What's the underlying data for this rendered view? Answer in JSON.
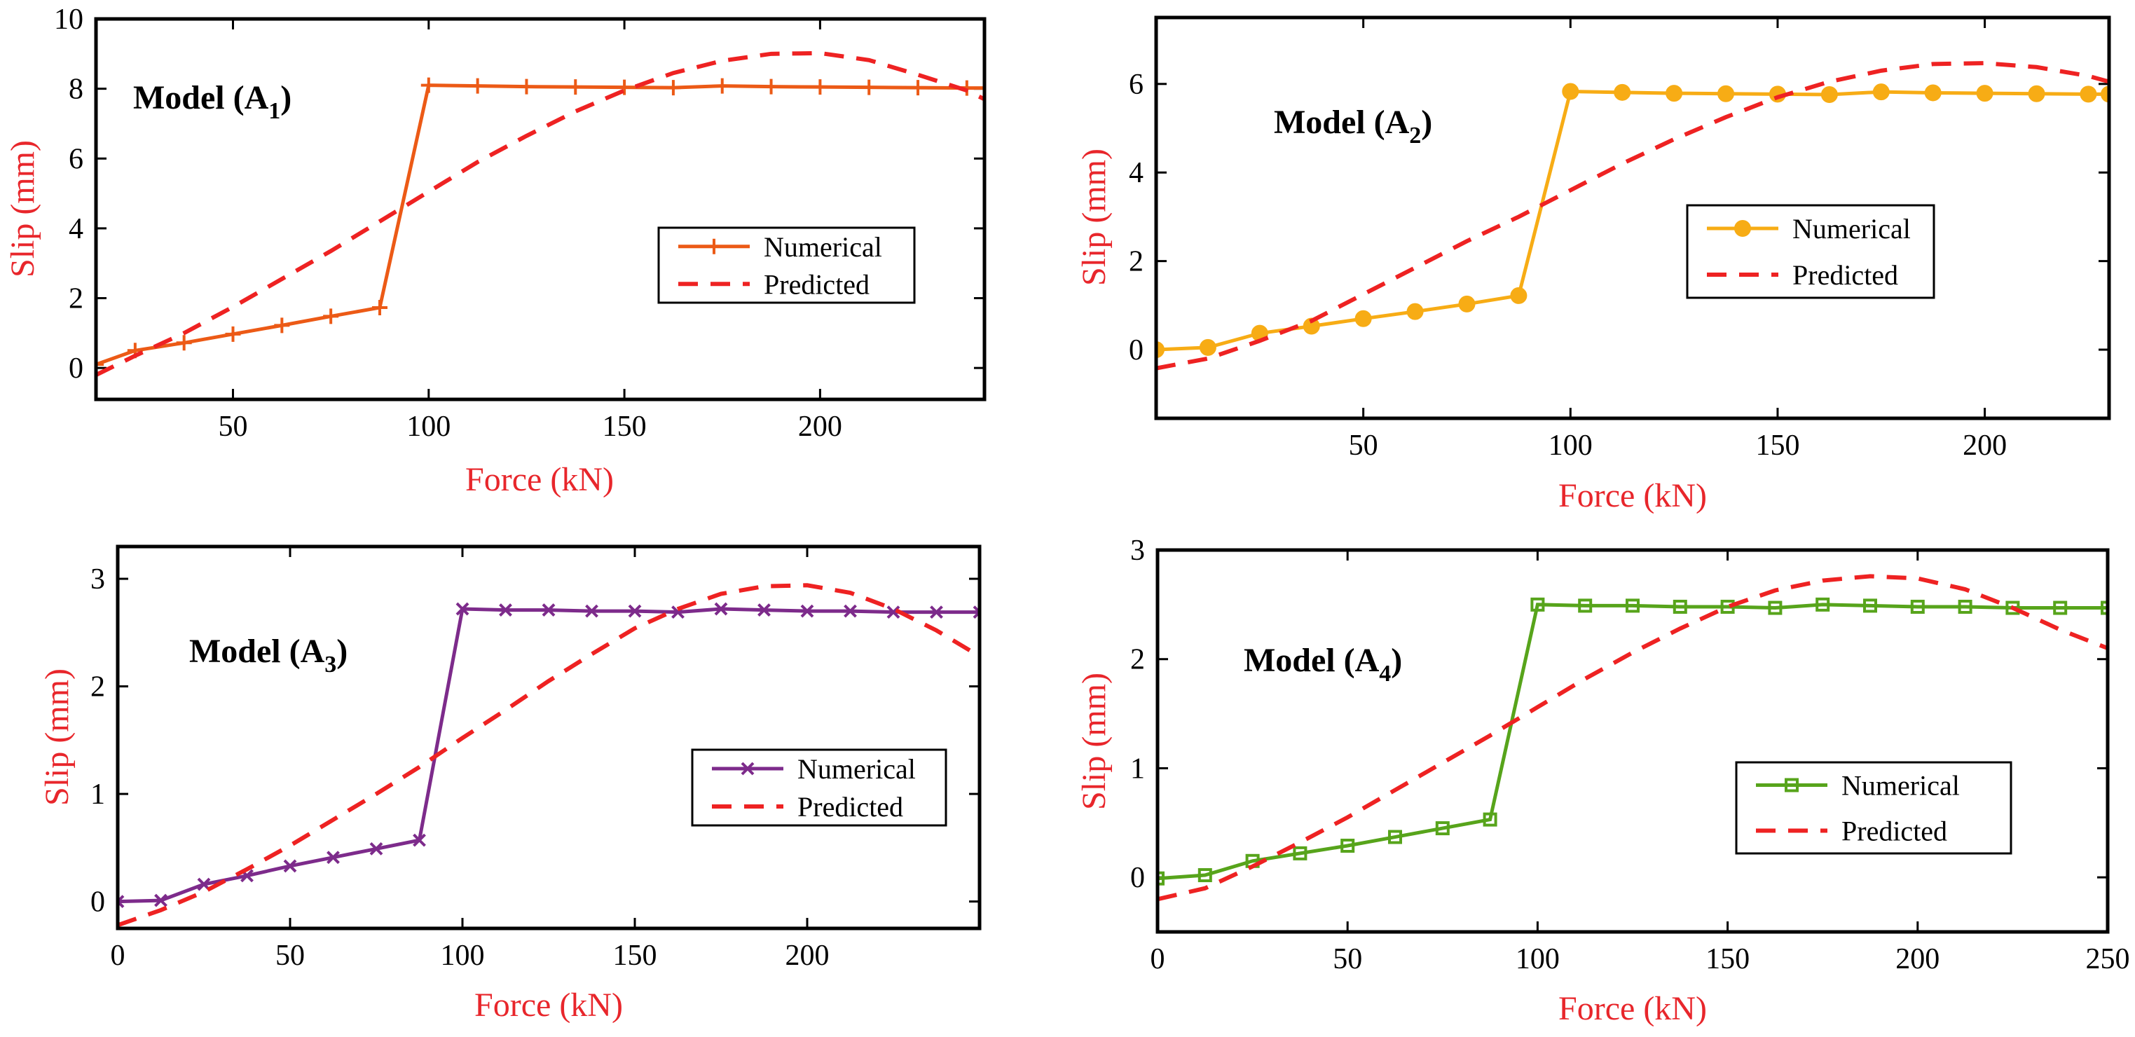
{
  "colors": {
    "predicted": "#ee2222",
    "axis_label": "#e8262b",
    "axis": "#000000"
  },
  "chart_data": [
    {
      "type": "line",
      "panel": "A1",
      "model_label": "Model (A",
      "model_sub": "1",
      "model_close": ")",
      "xlabel": "Force (kN)",
      "ylabel": "Slip (mm)",
      "xlim": [
        15,
        242
      ],
      "ylim": [
        -0.9,
        10
      ],
      "xticks": [
        50,
        100,
        150,
        200
      ],
      "yticks": [
        0,
        2,
        4,
        6,
        8,
        10
      ],
      "legend": {
        "position": "center-right",
        "entries": [
          "Numerical",
          "Predicted"
        ]
      },
      "series": [
        {
          "name": "Numerical",
          "marker": "plus",
          "color": "#ec5a16",
          "x": [
            15,
            25,
            37.5,
            50,
            62.5,
            75,
            87.5,
            100,
            112.5,
            125,
            137.5,
            150,
            162.5,
            175,
            187.5,
            200,
            212.5,
            225,
            237.5,
            242
          ],
          "y": [
            0.1,
            0.5,
            0.72,
            0.97,
            1.22,
            1.48,
            1.73,
            8.1,
            8.08,
            8.06,
            8.05,
            8.04,
            8.03,
            8.08,
            8.06,
            8.05,
            8.04,
            8.03,
            8.02,
            8.02
          ]
        },
        {
          "name": "Predicted",
          "style": "dashed",
          "x": [
            15,
            25,
            37.5,
            50,
            62.5,
            75,
            87.5,
            100,
            112.5,
            125,
            137.5,
            150,
            162.5,
            175,
            187.5,
            200,
            212.5,
            225,
            237.5,
            242
          ],
          "y": [
            -0.2,
            0.35,
            1.0,
            1.75,
            2.55,
            3.35,
            4.2,
            5.05,
            5.9,
            6.65,
            7.35,
            7.95,
            8.45,
            8.8,
            9.0,
            9.02,
            8.82,
            8.4,
            7.95,
            7.7
          ]
        }
      ]
    },
    {
      "type": "line",
      "panel": "A2",
      "model_label": "Model (A",
      "model_sub": "2",
      "model_close": ")",
      "xlabel": "Force (kN)",
      "ylabel": "Slip (mm)",
      "xlim": [
        0,
        230
      ],
      "ylim": [
        -1.55,
        7.5
      ],
      "xticks": [
        50,
        100,
        150,
        200
      ],
      "yticks": [
        0,
        2,
        4,
        6
      ],
      "legend": {
        "position": "center-right",
        "entries": [
          "Numerical",
          "Predicted"
        ]
      },
      "series": [
        {
          "name": "Numerical",
          "marker": "circle",
          "color": "#f7ac15",
          "x": [
            0,
            12.5,
            25,
            37.5,
            50,
            62.5,
            75,
            87.5,
            100,
            112.5,
            125,
            137.5,
            150,
            162.5,
            175,
            187.5,
            200,
            212.5,
            225,
            230
          ],
          "y": [
            0.0,
            0.05,
            0.37,
            0.53,
            0.7,
            0.86,
            1.03,
            1.22,
            5.83,
            5.81,
            5.79,
            5.78,
            5.77,
            5.76,
            5.82,
            5.8,
            5.79,
            5.78,
            5.77,
            5.77
          ]
        },
        {
          "name": "Predicted",
          "style": "dashed",
          "x": [
            0,
            12.5,
            25,
            37.5,
            50,
            62.5,
            75,
            87.5,
            100,
            112.5,
            125,
            137.5,
            150,
            162.5,
            175,
            187.5,
            200,
            212.5,
            225,
            230
          ],
          "y": [
            -0.42,
            -0.2,
            0.2,
            0.65,
            1.25,
            1.85,
            2.45,
            3.0,
            3.6,
            4.2,
            4.75,
            5.25,
            5.7,
            6.05,
            6.3,
            6.45,
            6.47,
            6.38,
            6.18,
            6.05
          ]
        }
      ]
    },
    {
      "type": "line",
      "panel": "A3",
      "model_label": "Model (A",
      "model_sub": "3",
      "model_close": ")",
      "xlabel": "Force (kN)",
      "ylabel": "Slip (mm)",
      "xlim": [
        0,
        250
      ],
      "ylim": [
        -0.25,
        3.3
      ],
      "xticks": [
        0,
        50,
        100,
        150,
        200
      ],
      "yticks": [
        0,
        1,
        2,
        3
      ],
      "legend": {
        "position": "center-right",
        "entries": [
          "Numerical",
          "Predicted"
        ]
      },
      "series": [
        {
          "name": "Numerical",
          "marker": "x",
          "color": "#7d2b8b",
          "x": [
            0,
            12.5,
            25,
            37.5,
            50,
            62.5,
            75,
            87.5,
            100,
            112.5,
            125,
            137.5,
            150,
            162.5,
            175,
            187.5,
            200,
            212.5,
            225,
            237.5,
            250
          ],
          "y": [
            0.0,
            0.01,
            0.16,
            0.24,
            0.33,
            0.41,
            0.49,
            0.57,
            2.72,
            2.71,
            2.71,
            2.7,
            2.7,
            2.69,
            2.72,
            2.71,
            2.7,
            2.7,
            2.69,
            2.69,
            2.69
          ]
        },
        {
          "name": "Predicted",
          "style": "dashed",
          "x": [
            0,
            12.5,
            25,
            37.5,
            50,
            62.5,
            75,
            87.5,
            100,
            112.5,
            125,
            137.5,
            150,
            162.5,
            175,
            187.5,
            200,
            212.5,
            225,
            237.5,
            250
          ],
          "y": [
            -0.22,
            -0.08,
            0.09,
            0.3,
            0.52,
            0.76,
            1.0,
            1.25,
            1.52,
            1.78,
            2.05,
            2.3,
            2.54,
            2.72,
            2.86,
            2.93,
            2.94,
            2.87,
            2.72,
            2.52,
            2.28
          ]
        }
      ]
    },
    {
      "type": "line",
      "panel": "A4",
      "model_label": "Model (A",
      "model_sub": "4",
      "model_close": ")",
      "xlabel": "Force (kN)",
      "ylabel": "Slip (mm)",
      "xlim": [
        0,
        250
      ],
      "ylim": [
        -0.5,
        3.0
      ],
      "xticks": [
        0,
        50,
        100,
        150,
        200,
        250
      ],
      "yticks": [
        0,
        1,
        2,
        3
      ],
      "legend": {
        "position": "center-right",
        "entries": [
          "Numerical",
          "Predicted"
        ]
      },
      "series": [
        {
          "name": "Numerical",
          "marker": "square",
          "color": "#57a41b",
          "x": [
            0,
            12.5,
            25,
            37.5,
            50,
            62.5,
            75,
            87.5,
            100,
            112.5,
            125,
            137.5,
            150,
            162.5,
            175,
            187.5,
            200,
            212.5,
            225,
            237.5,
            250
          ],
          "y": [
            -0.01,
            0.02,
            0.15,
            0.22,
            0.29,
            0.37,
            0.45,
            0.53,
            2.5,
            2.49,
            2.49,
            2.48,
            2.48,
            2.47,
            2.5,
            2.49,
            2.48,
            2.48,
            2.47,
            2.47,
            2.47
          ]
        },
        {
          "name": "Predicted",
          "style": "dashed",
          "x": [
            0,
            12.5,
            25,
            37.5,
            50,
            62.5,
            75,
            87.5,
            100,
            112.5,
            125,
            137.5,
            150,
            162.5,
            175,
            187.5,
            200,
            212.5,
            225,
            237.5,
            250
          ],
          "y": [
            -0.2,
            -0.1,
            0.1,
            0.32,
            0.55,
            0.8,
            1.05,
            1.3,
            1.56,
            1.82,
            2.06,
            2.28,
            2.48,
            2.63,
            2.72,
            2.76,
            2.74,
            2.64,
            2.47,
            2.27,
            2.1
          ]
        }
      ]
    }
  ]
}
